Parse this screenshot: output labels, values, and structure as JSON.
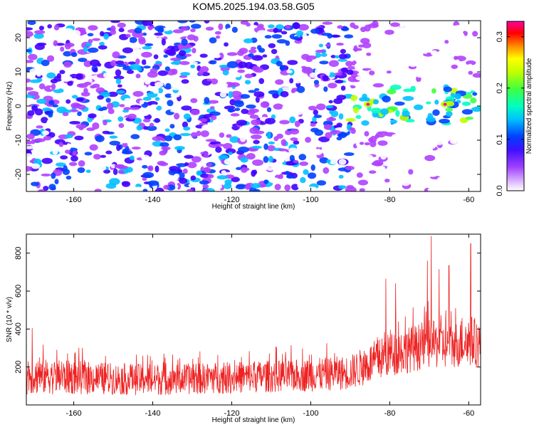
{
  "figure": {
    "title": "KOM5.2025.194.03.58.G05"
  },
  "chart_data": [
    {
      "type": "heatmap",
      "title": "KOM5.2025.194.03.58.G05",
      "xlabel": "Height of straight line (km)",
      "ylabel": "Frequency (Hz)",
      "xlim": [
        -172,
        -57
      ],
      "ylim": [
        -25,
        25
      ],
      "x_ticks": [
        -160,
        -140,
        -120,
        -100,
        -80,
        -60
      ],
      "y_ticks": [
        -20,
        -10,
        0,
        10,
        20
      ],
      "colorbar": {
        "label": "Normalized spectral amplitude",
        "range": [
          0.0,
          0.33
        ],
        "ticks": [
          0.0,
          0.1,
          0.2,
          0.3
        ],
        "colormap": [
          "#ffffff",
          "#b040ff",
          "#4000ff",
          "#0040ff",
          "#00c0ff",
          "#00ffc0",
          "#40ff40",
          "#c0ff00",
          "#ffff00",
          "#ff8000",
          "#ff0000",
          "#ff00a0"
        ]
      },
      "description_bands": {
        "background_amplitude": 0.05,
        "signal_center_frequency_hz": 0,
        "signal_start_height_km": -90,
        "signal_peak_amplitude": 0.31,
        "signal_peak_heights_km": [
          -85.5,
          -66
        ]
      }
    },
    {
      "type": "line",
      "xlabel": "Height of straight line (km)",
      "ylabel": "SNR (10 * v/v)",
      "xlim": [
        -172,
        -57
      ],
      "ylim": [
        0,
        900
      ],
      "x_ticks": [
        -160,
        -140,
        -120,
        -100,
        -80,
        -60
      ],
      "y_ticks": [
        200,
        400,
        600,
        800
      ],
      "series": [
        {
          "color": "#ee2222",
          "envelope": {
            "x": [
              -172,
              -160,
              -140,
              -120,
              -100,
              -90,
              -85,
              -80,
              -75,
              -70,
              -65,
              -60,
              -57
            ],
            "baseline": [
              125,
              125,
              120,
              130,
              140,
              150,
              180,
              220,
              240,
              260,
              260,
              270,
              260
            ],
            "typical_peak": [
              330,
              310,
              280,
              300,
              320,
              340,
              420,
              480,
              520,
              560,
              520,
              600,
              560
            ]
          },
          "notable_peaks": [
            {
              "x": -170.5,
              "y": 405
            },
            {
              "x": -81,
              "y": 665
            },
            {
              "x": -78.5,
              "y": 640
            },
            {
              "x": -70.5,
              "y": 760
            },
            {
              "x": -69.5,
              "y": 890
            },
            {
              "x": -67.5,
              "y": 715
            },
            {
              "x": -65,
              "y": 735
            },
            {
              "x": -59.5,
              "y": 850
            }
          ]
        }
      ]
    }
  ]
}
